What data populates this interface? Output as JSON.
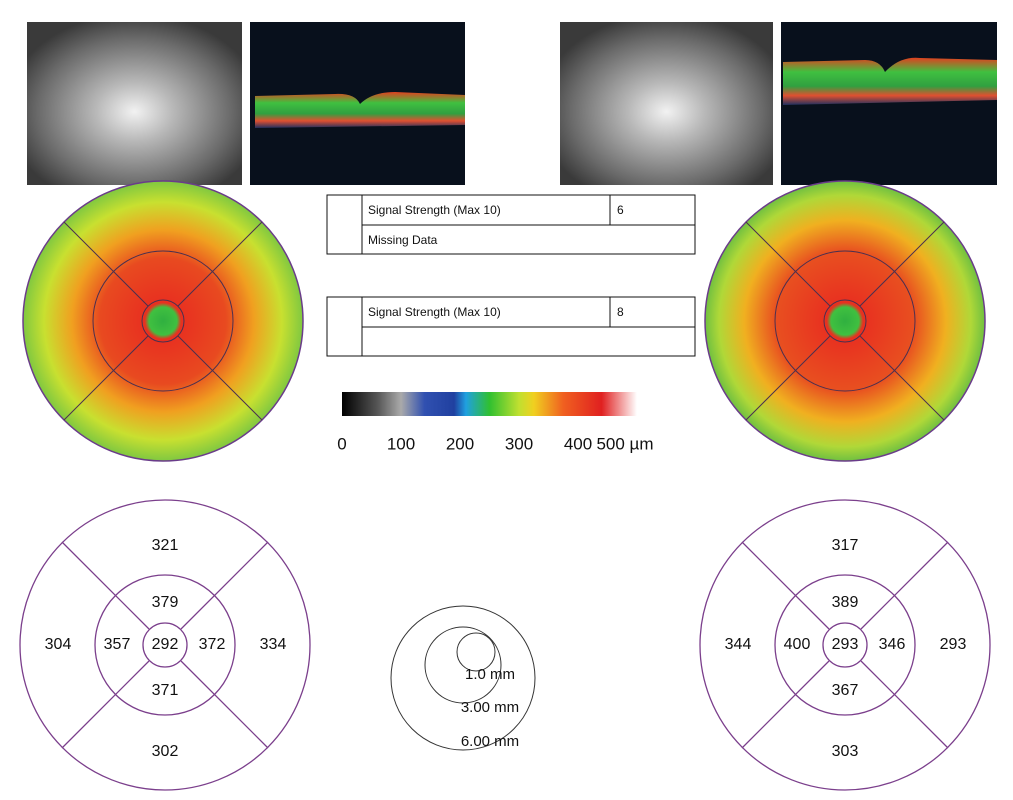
{
  "signal_panels": [
    {
      "label": "Signal Strength (Max 10)",
      "value": 6,
      "note": "Missing Data"
    },
    {
      "label": "Signal Strength (Max 10)",
      "value": 8
    }
  ],
  "color_scale": {
    "ticks": [
      "0",
      "100",
      "200",
      "300",
      "400",
      "500 µm"
    ]
  },
  "thickness_grids": [
    {
      "superior_outer": 321,
      "superior_inner": 379,
      "left_outer": 304,
      "left_inner": 357,
      "center": 292,
      "right_inner": 372,
      "right_outer": 334,
      "inferior_inner": 371,
      "inferior_outer": 302
    },
    {
      "superior_outer": 317,
      "superior_inner": 389,
      "left_outer": 344,
      "left_inner": 400,
      "center": 293,
      "right_inner": 346,
      "right_outer": 293,
      "inferior_inner": 367,
      "inferior_outer": 303
    }
  ],
  "ring_legend": {
    "rings": [
      "1.0 mm",
      "3.00 mm",
      "6.00 mm"
    ]
  }
}
